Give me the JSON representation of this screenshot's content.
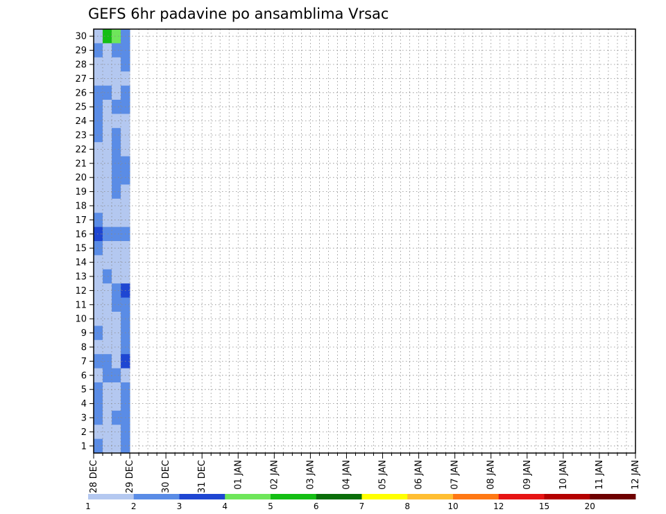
{
  "chart_data": {
    "type": "heatmap",
    "title": "GEFS 6hr padavine po ansamblima Vrsac",
    "xlabel": "",
    "ylabel": "",
    "x_tick_labels": [
      "28 DEC",
      "29 DEC",
      "30 DEC",
      "31 DEC",
      "01 JAN",
      "02 JAN",
      "03 JAN",
      "04 JAN",
      "05 JAN",
      "06 JAN",
      "07 JAN",
      "08 JAN",
      "09 JAN",
      "10 JAN",
      "11 JAN",
      "12 JAN"
    ],
    "y_tick_labels": [
      "1",
      "2",
      "3",
      "4",
      "5",
      "6",
      "7",
      "8",
      "9",
      "10",
      "11",
      "12",
      "13",
      "14",
      "15",
      "16",
      "17",
      "18",
      "19",
      "20",
      "21",
      "22",
      "23",
      "24",
      "25",
      "26",
      "27",
      "28",
      "29",
      "30"
    ],
    "ylim": [
      0,
      30
    ],
    "grid": true,
    "levels": [
      "1",
      "2",
      "3",
      "4",
      "5",
      "6",
      "7",
      "8",
      "10",
      "12",
      "15",
      "20"
    ],
    "colors": [
      "#b4c8f0",
      "#5a8ce6",
      "#1e46d2",
      "#6ee65a",
      "#14be14",
      "#0a6e0a",
      "#ffff00",
      "#ffbe32",
      "#ff7814",
      "#e61414",
      "#b40000",
      "#6e0000"
    ],
    "cells": [
      [
        0,
        30,
        1
      ],
      [
        0,
        29,
        2
      ],
      [
        0,
        28,
        1
      ],
      [
        0,
        27,
        1
      ],
      [
        0,
        26,
        2
      ],
      [
        0,
        25,
        2
      ],
      [
        0,
        24,
        2
      ],
      [
        0,
        23,
        2
      ],
      [
        0,
        22,
        1
      ],
      [
        0,
        21,
        1
      ],
      [
        0,
        20,
        1
      ],
      [
        0,
        19,
        1
      ],
      [
        0,
        18,
        1
      ],
      [
        0,
        17,
        2
      ],
      [
        0,
        16,
        3
      ],
      [
        0,
        15,
        2
      ],
      [
        0,
        14,
        1
      ],
      [
        0,
        13,
        1
      ],
      [
        0,
        12,
        1
      ],
      [
        0,
        11,
        1
      ],
      [
        0,
        10,
        1
      ],
      [
        0,
        9,
        2
      ],
      [
        0,
        8,
        1
      ],
      [
        0,
        7,
        2
      ],
      [
        0,
        6,
        1
      ],
      [
        0,
        5,
        2
      ],
      [
        0,
        4,
        2
      ],
      [
        0,
        3,
        2
      ],
      [
        0,
        2,
        1
      ],
      [
        0,
        1,
        2
      ],
      [
        1,
        30,
        5
      ],
      [
        1,
        29,
        1
      ],
      [
        1,
        28,
        1
      ],
      [
        1,
        27,
        1
      ],
      [
        1,
        26,
        2
      ],
      [
        1,
        25,
        1
      ],
      [
        1,
        24,
        1
      ],
      [
        1,
        23,
        1
      ],
      [
        1,
        22,
        1
      ],
      [
        1,
        21,
        1
      ],
      [
        1,
        20,
        1
      ],
      [
        1,
        19,
        1
      ],
      [
        1,
        18,
        1
      ],
      [
        1,
        17,
        1
      ],
      [
        1,
        16,
        2
      ],
      [
        1,
        15,
        1
      ],
      [
        1,
        14,
        1
      ],
      [
        1,
        13,
        2
      ],
      [
        1,
        12,
        1
      ],
      [
        1,
        11,
        1
      ],
      [
        1,
        10,
        1
      ],
      [
        1,
        9,
        1
      ],
      [
        1,
        8,
        1
      ],
      [
        1,
        7,
        2
      ],
      [
        1,
        6,
        2
      ],
      [
        1,
        5,
        1
      ],
      [
        1,
        4,
        1
      ],
      [
        1,
        3,
        1
      ],
      [
        1,
        2,
        1
      ],
      [
        1,
        1,
        1
      ],
      [
        2,
        30,
        4
      ],
      [
        2,
        29,
        2
      ],
      [
        2,
        28,
        1
      ],
      [
        2,
        27,
        1
      ],
      [
        2,
        26,
        1
      ],
      [
        2,
        25,
        2
      ],
      [
        2,
        24,
        1
      ],
      [
        2,
        23,
        2
      ],
      [
        2,
        22,
        2
      ],
      [
        2,
        21,
        2
      ],
      [
        2,
        20,
        2
      ],
      [
        2,
        19,
        2
      ],
      [
        2,
        18,
        1
      ],
      [
        2,
        17,
        1
      ],
      [
        2,
        16,
        2
      ],
      [
        2,
        15,
        1
      ],
      [
        2,
        14,
        1
      ],
      [
        2,
        13,
        1
      ],
      [
        2,
        12,
        2
      ],
      [
        2,
        11,
        2
      ],
      [
        2,
        10,
        1
      ],
      [
        2,
        9,
        1
      ],
      [
        2,
        8,
        1
      ],
      [
        2,
        7,
        1
      ],
      [
        2,
        6,
        2
      ],
      [
        2,
        5,
        1
      ],
      [
        2,
        4,
        1
      ],
      [
        2,
        3,
        2
      ],
      [
        2,
        2,
        1
      ],
      [
        2,
        1,
        1
      ],
      [
        3,
        30,
        2
      ],
      [
        3,
        29,
        2
      ],
      [
        3,
        28,
        2
      ],
      [
        3,
        27,
        1
      ],
      [
        3,
        26,
        2
      ],
      [
        3,
        25,
        2
      ],
      [
        3,
        24,
        1
      ],
      [
        3,
        23,
        1
      ],
      [
        3,
        22,
        1
      ],
      [
        3,
        21,
        2
      ],
      [
        3,
        20,
        2
      ],
      [
        3,
        19,
        1
      ],
      [
        3,
        18,
        1
      ],
      [
        3,
        17,
        1
      ],
      [
        3,
        16,
        2
      ],
      [
        3,
        15,
        1
      ],
      [
        3,
        14,
        1
      ],
      [
        3,
        13,
        1
      ],
      [
        3,
        12,
        3
      ],
      [
        3,
        11,
        2
      ],
      [
        3,
        10,
        2
      ],
      [
        3,
        9,
        2
      ],
      [
        3,
        8,
        2
      ],
      [
        3,
        7,
        3
      ],
      [
        3,
        6,
        1
      ],
      [
        3,
        5,
        2
      ],
      [
        3,
        4,
        2
      ],
      [
        3,
        3,
        2
      ],
      [
        3,
        2,
        2
      ],
      [
        3,
        1,
        2
      ]
    ]
  }
}
